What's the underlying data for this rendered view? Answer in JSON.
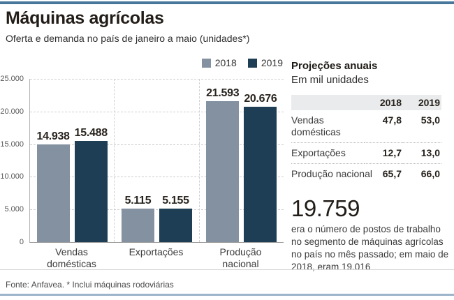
{
  "header": {
    "title": "Máquinas agrícolas",
    "subtitle": "Oferta e demanda no país de janeiro a maio (unidades*)"
  },
  "chart_data": {
    "type": "bar",
    "categories": [
      "Vendas domésticas",
      "Exportações",
      "Produção nacional"
    ],
    "series": [
      {
        "name": "2018",
        "color": "#8491a0",
        "values": [
          14938,
          5115,
          21593
        ],
        "labels": [
          "14.938",
          "5.115",
          "21.593"
        ]
      },
      {
        "name": "2019",
        "color": "#1d3e54",
        "values": [
          15488,
          5155,
          20676
        ],
        "labels": [
          "15.488",
          "5.155",
          "20.676"
        ]
      }
    ],
    "ylim": [
      0,
      25000
    ],
    "yticks": [
      "25.000",
      "20.000",
      "15.000",
      "10.000",
      "5.000",
      "0"
    ],
    "grid": "dashed-horizontal",
    "legend_position": "top-right"
  },
  "panel": {
    "title": "Projeções anuais",
    "subtitle": "Em mil unidades",
    "table": {
      "columns": [
        "2018",
        "2019"
      ],
      "rows": [
        {
          "label": "Vendas domésticas",
          "v2018": "47,8",
          "v2019": "53,0"
        },
        {
          "label": "Exportações",
          "v2018": "12,7",
          "v2019": "13,0"
        },
        {
          "label": "Produção nacional",
          "v2018": "65,7",
          "v2019": "66,0"
        }
      ]
    },
    "big_number": "19.759",
    "note": "era o número de postos de trabalho no segmento de máquinas agrícolas no país no mês passado;  em maio de 2018, eram 19.016"
  },
  "footer": {
    "source": "Fonte: Anfavea. * Inclui máquinas rodoviárias"
  },
  "colors": {
    "top_rule": "#47789c",
    "bottom_rule": "#9db5ca",
    "bar_2018": "#8491a0",
    "bar_2019": "#1d3e54",
    "table_header_bg": "#e9ebec"
  }
}
